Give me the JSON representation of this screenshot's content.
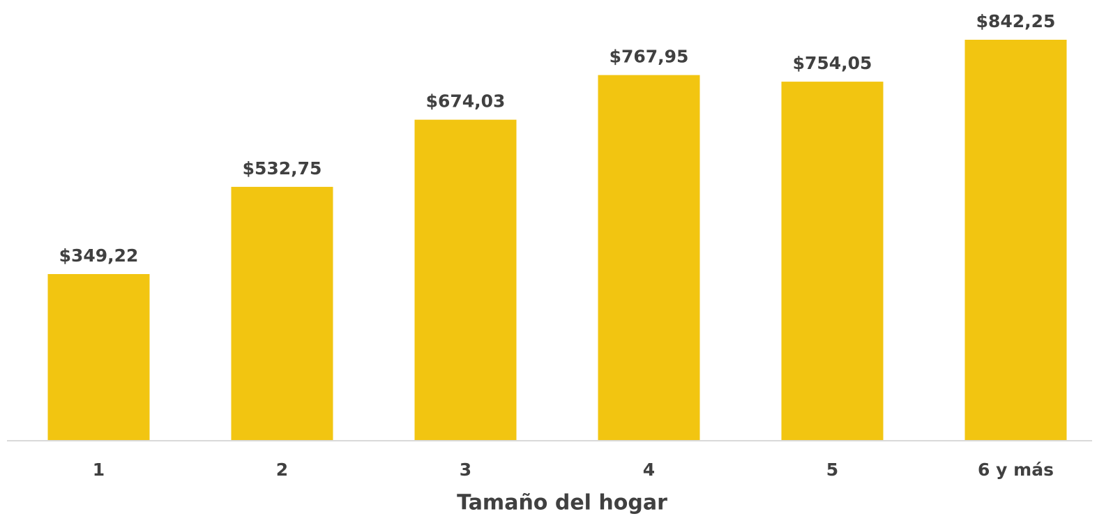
{
  "chart_data": {
    "type": "bar",
    "x_label": "Tamaño del hogar",
    "categories": [
      "1",
      "2",
      "3",
      "4",
      "5",
      "6 y más"
    ],
    "values": [
      349.22,
      532.75,
      674.03,
      767.95,
      754.05,
      842.25
    ],
    "value_labels": [
      "$349,22",
      "$532,75",
      "$674,03",
      "$767,95",
      "$754,05",
      "$842,25"
    ],
    "color": "#f2c511"
  }
}
